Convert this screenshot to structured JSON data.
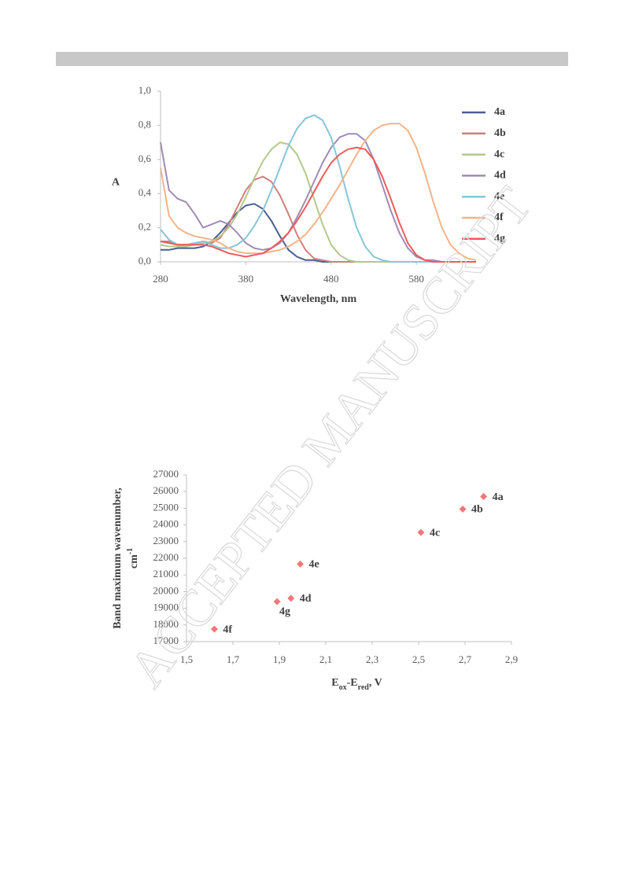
{
  "watermark": "ACCEPTED MANUSCRIPT",
  "chart_data": [
    {
      "type": "line",
      "xlabel": "Wavelength, nm",
      "ylabel": "A",
      "x": [
        280,
        290,
        300,
        310,
        320,
        330,
        340,
        350,
        360,
        370,
        380,
        390,
        400,
        410,
        420,
        430,
        440,
        450,
        460,
        470,
        480,
        490,
        500,
        510,
        520,
        530,
        540,
        550,
        560,
        570,
        580,
        590,
        600,
        610,
        620,
        630,
        640,
        650
      ],
      "xlim": [
        280,
        650
      ],
      "xticks": [
        280,
        380,
        480,
        580
      ],
      "ylim": [
        0,
        1
      ],
      "yticks": [
        {
          "value": 0,
          "label": "0,0"
        },
        {
          "value": 0.2,
          "label": "0,2"
        },
        {
          "value": 0.4,
          "label": "0,4"
        },
        {
          "value": 0.6,
          "label": "0,6"
        },
        {
          "value": 0.8,
          "label": "0,8"
        },
        {
          "value": 1,
          "label": "1,0"
        }
      ],
      "legend": "right",
      "series": [
        {
          "name": "4a",
          "color": "#4a5d91",
          "values": [
            0.07,
            0.07,
            0.08,
            0.08,
            0.08,
            0.09,
            0.12,
            0.17,
            0.23,
            0.29,
            0.33,
            0.34,
            0.31,
            0.24,
            0.15,
            0.07,
            0.03,
            0.01,
            0.01,
            0,
            0,
            0,
            0,
            0,
            0,
            0,
            0,
            0,
            0,
            0,
            0,
            0,
            0,
            0,
            0,
            0,
            0,
            0
          ]
        },
        {
          "name": "4b",
          "color": "#cf7f7c",
          "values": [
            0.12,
            0.12,
            0.1,
            0.1,
            0.11,
            0.12,
            0.11,
            0.14,
            0.22,
            0.32,
            0.42,
            0.48,
            0.5,
            0.47,
            0.39,
            0.28,
            0.16,
            0.07,
            0.02,
            0.01,
            0,
            0,
            0,
            0,
            0,
            0,
            0,
            0,
            0,
            0,
            0,
            0,
            0,
            0,
            0,
            0,
            0,
            0
          ]
        },
        {
          "name": "4c",
          "color": "#b3c98c",
          "values": [
            0.1,
            0.09,
            0.09,
            0.09,
            0.1,
            0.11,
            0.12,
            0.15,
            0.2,
            0.28,
            0.38,
            0.49,
            0.59,
            0.66,
            0.7,
            0.69,
            0.63,
            0.52,
            0.37,
            0.22,
            0.1,
            0.04,
            0.01,
            0,
            0,
            0,
            0,
            0,
            0,
            0,
            0,
            0,
            0,
            0,
            0,
            0,
            0,
            0
          ]
        },
        {
          "name": "4d",
          "color": "#a08bb5",
          "values": [
            0.7,
            0.42,
            0.37,
            0.35,
            0.28,
            0.2,
            0.22,
            0.24,
            0.22,
            0.17,
            0.11,
            0.08,
            0.07,
            0.08,
            0.11,
            0.17,
            0.26,
            0.36,
            0.47,
            0.58,
            0.67,
            0.73,
            0.75,
            0.75,
            0.71,
            0.6,
            0.45,
            0.3,
            0.17,
            0.08,
            0.03,
            0.01,
            0.01,
            0,
            0,
            0,
            0,
            0
          ]
        },
        {
          "name": "4e",
          "color": "#86c6d8",
          "values": [
            0.19,
            0.13,
            0.1,
            0.1,
            0.11,
            0.12,
            0.1,
            0.08,
            0.08,
            0.1,
            0.14,
            0.21,
            0.3,
            0.42,
            0.55,
            0.68,
            0.78,
            0.84,
            0.86,
            0.83,
            0.73,
            0.56,
            0.37,
            0.2,
            0.09,
            0.03,
            0.01,
            0,
            0,
            0,
            0,
            0,
            0,
            0,
            0,
            0,
            0,
            0
          ]
        },
        {
          "name": "4f",
          "color": "#f4b489",
          "values": [
            0.55,
            0.27,
            0.2,
            0.17,
            0.15,
            0.14,
            0.13,
            0.11,
            0.08,
            0.06,
            0.05,
            0.05,
            0.05,
            0.06,
            0.07,
            0.09,
            0.12,
            0.16,
            0.22,
            0.29,
            0.37,
            0.45,
            0.54,
            0.63,
            0.71,
            0.77,
            0.8,
            0.81,
            0.81,
            0.77,
            0.67,
            0.52,
            0.35,
            0.2,
            0.1,
            0.05,
            0.02,
            0.01
          ]
        },
        {
          "name": "4g",
          "color": "#ef5a5a",
          "values": [
            0.12,
            0.11,
            0.1,
            0.1,
            0.1,
            0.1,
            0.09,
            0.07,
            0.05,
            0.04,
            0.03,
            0.04,
            0.05,
            0.08,
            0.12,
            0.17,
            0.24,
            0.32,
            0.41,
            0.5,
            0.58,
            0.63,
            0.66,
            0.67,
            0.66,
            0.6,
            0.5,
            0.37,
            0.23,
            0.11,
            0.04,
            0.01,
            0,
            0,
            0,
            0,
            0,
            0
          ]
        }
      ]
    },
    {
      "type": "scatter",
      "color": "#f07878",
      "xlabel": [
        "E",
        "ox",
        "-E",
        "red",
        ", V"
      ],
      "ylabel": [
        "Band maximum wavenumber,",
        "cm",
        "-1"
      ],
      "labels": [
        "4a",
        "4b",
        "4c",
        "4e",
        "4d",
        "4g",
        "4f"
      ],
      "x": [
        2.78,
        2.69,
        2.51,
        1.99,
        1.95,
        1.89,
        1.62
      ],
      "values": [
        25700,
        24950,
        23550,
        21650,
        19600,
        19400,
        17750
      ],
      "xlim": [
        1.5,
        2.9
      ],
      "xticks": [
        {
          "value": 1.5,
          "label": "1,5"
        },
        {
          "value": 1.7,
          "label": "1,7"
        },
        {
          "value": 1.9,
          "label": "1,9"
        },
        {
          "value": 2.1,
          "label": "2,1"
        },
        {
          "value": 2.3,
          "label": "2,3"
        },
        {
          "value": 2.5,
          "label": "2,5"
        },
        {
          "value": 2.7,
          "label": "2,7"
        },
        {
          "value": 2.9,
          "label": "2,9"
        }
      ],
      "ylim": [
        17000,
        27000
      ],
      "yticks": [
        17000,
        18000,
        19000,
        20000,
        21000,
        22000,
        23000,
        24000,
        25000,
        26000,
        27000
      ]
    }
  ]
}
